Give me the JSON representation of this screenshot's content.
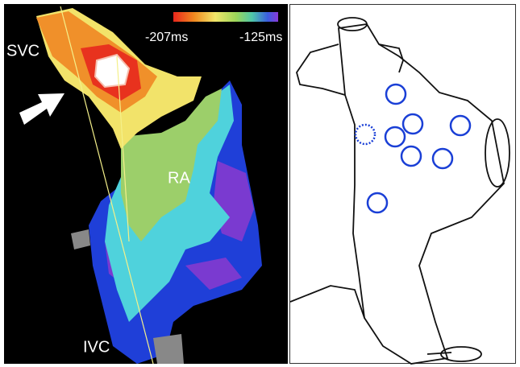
{
  "map": {
    "scale": {
      "min_label": "-207ms",
      "max_label": "-125ms"
    },
    "labels": {
      "svc": "SVC",
      "ra": "RA",
      "ivc": "IVC"
    }
  }
}
